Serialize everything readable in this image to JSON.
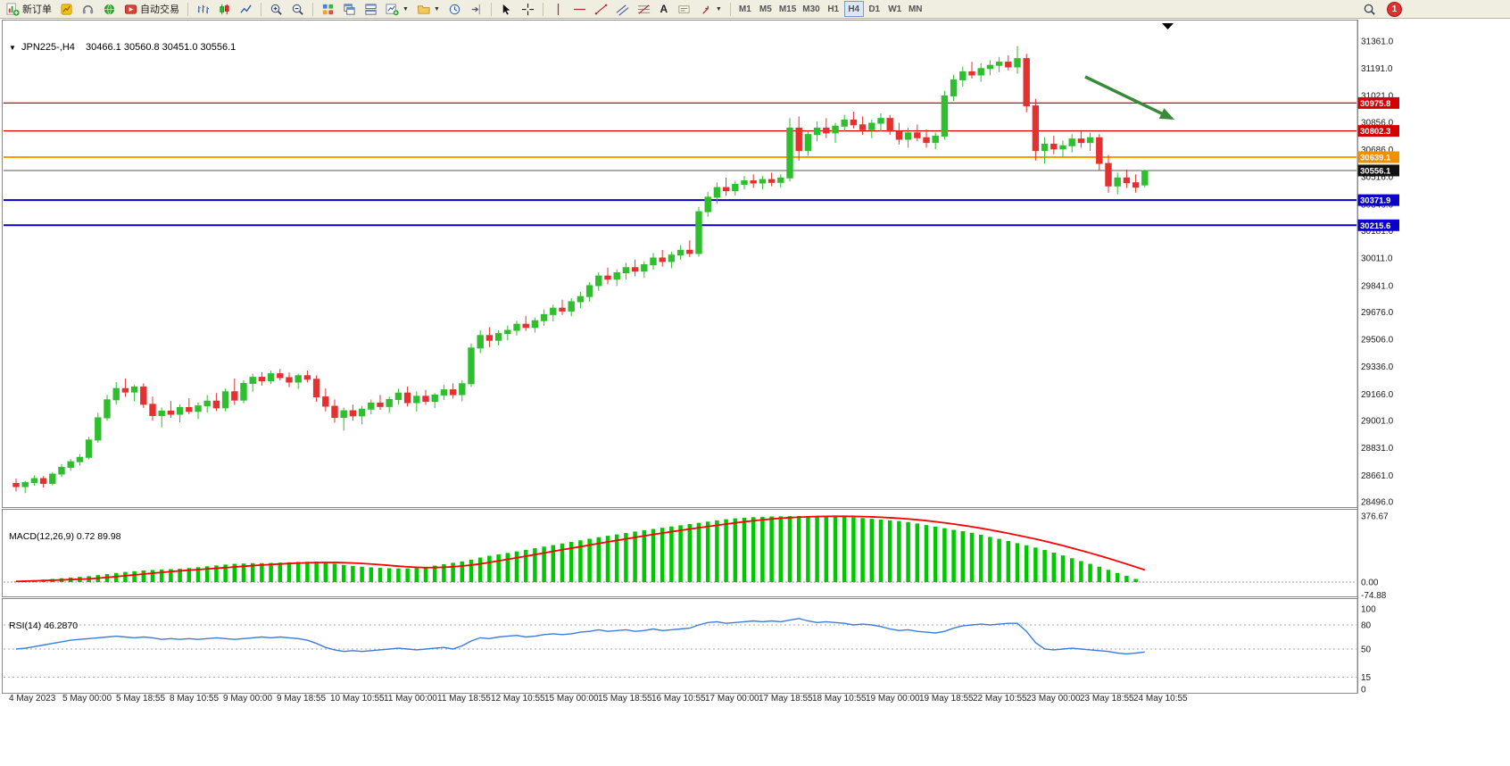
{
  "toolbar": {
    "new_order_label": "新订单",
    "auto_trading_label": "自动交易",
    "text_tool_label": "A",
    "timeframes": [
      "M1",
      "M5",
      "M15",
      "M30",
      "H1",
      "H4",
      "D1",
      "W1",
      "MN"
    ],
    "active_timeframe": "H4",
    "notification_count": "1"
  },
  "titles": {
    "symbol": "JPN225-,H4",
    "ohlc": "30466.1 30560.8 30451.0 30556.1",
    "macd_label": "MACD(12,26,9)",
    "macd_main_value": "0.72",
    "macd_signal_value": "89.98",
    "rsi_label": "RSI(14)",
    "rsi_value": "46.2870"
  },
  "chart_data": {
    "type": "candlestick",
    "symbol": "JPN225-",
    "timeframe": "H4",
    "x_labels": [
      "4 May 2023",
      "5 May 00:00",
      "5 May 18:55",
      "8 May 10:55",
      "9 May 00:00",
      "9 May 18:55",
      "10 May 10:55",
      "11 May 00:00",
      "11 May 18:55",
      "12 May 10:55",
      "15 May 00:00",
      "15 May 18:55",
      "16 May 10:55",
      "17 May 00:00",
      "17 May 18:55",
      "18 May 10:55",
      "19 May 00:00",
      "19 May 18:55",
      "22 May 10:55",
      "23 May 00:00",
      "23 May 18:55",
      "24 May 10:55"
    ],
    "price_panel": {
      "axis_range": [
        28496,
        31361
      ],
      "axis_ticks": [
        "31361.0",
        "31191.0",
        "31021.0",
        "30856.0",
        "30686.0",
        "30516.0",
        "30346.0",
        "30181.0",
        "30011.0",
        "29841.0",
        "29676.0",
        "29506.0",
        "29336.0",
        "29166.0",
        "29001.0",
        "28831.0",
        "28661.0",
        "28496.0"
      ],
      "up_color": "#2ebe2e",
      "down_color": "#e53030",
      "horizontal_lines": [
        {
          "price": 30975.8,
          "label": "30975.8",
          "color": "#e00000",
          "badge_bg": "#d40000",
          "width": 1.2
        },
        {
          "price": 30802.3,
          "label": "30802.3",
          "color": "#e00000",
          "badge_bg": "#d40000",
          "width": 1.2
        },
        {
          "price": 30639.1,
          "label": "30639.1",
          "color": "#ff9d00",
          "badge_bg": "#f09000",
          "width": 2
        },
        {
          "price": 30556.1,
          "label": "30556.1",
          "color": "#555555",
          "badge_bg": "#111111",
          "width": 1
        },
        {
          "price": 30371.9,
          "label": "30371.9",
          "color": "#0a00c8",
          "badge_bg": "#0a00c8",
          "width": 2
        },
        {
          "price": 30215.6,
          "label": "30215.6",
          "color": "#0a00c8",
          "badge_bg": "#0a00c8",
          "width": 2
        }
      ],
      "annotation_arrow": {
        "color": "#3a8a3a",
        "direction": "down-right"
      },
      "candles_ohlc": [
        [
          28610,
          28640,
          28560,
          28590
        ],
        [
          28590,
          28625,
          28550,
          28615
        ],
        [
          28615,
          28660,
          28595,
          28640
        ],
        [
          28640,
          28655,
          28585,
          28610
        ],
        [
          28610,
          28680,
          28598,
          28668
        ],
        [
          28668,
          28730,
          28650,
          28710
        ],
        [
          28710,
          28762,
          28688,
          28745
        ],
        [
          28745,
          28792,
          28720,
          28772
        ],
        [
          28772,
          28900,
          28760,
          28880
        ],
        [
          28880,
          29050,
          28862,
          29018
        ],
        [
          29018,
          29160,
          29000,
          29130
        ],
        [
          29130,
          29240,
          29100,
          29200
        ],
        [
          29200,
          29262,
          29148,
          29178
        ],
        [
          29178,
          29222,
          29120,
          29210
        ],
        [
          29210,
          29232,
          29080,
          29102
        ],
        [
          29102,
          29150,
          29000,
          29032
        ],
        [
          29032,
          29082,
          28958,
          29060
        ],
        [
          29060,
          29122,
          29018,
          29040
        ],
        [
          29040,
          29102,
          28990,
          29082
        ],
        [
          29082,
          29140,
          29040,
          29058
        ],
        [
          29058,
          29112,
          29010,
          29092
        ],
        [
          29092,
          29160,
          29050,
          29122
        ],
        [
          29122,
          29172,
          29060,
          29080
        ],
        [
          29080,
          29200,
          29058,
          29180
        ],
        [
          29180,
          29262,
          29098,
          29128
        ],
        [
          29128,
          29252,
          29108,
          29232
        ],
        [
          29232,
          29292,
          29180,
          29270
        ],
        [
          29270,
          29302,
          29218,
          29248
        ],
        [
          29248,
          29312,
          29228,
          29292
        ],
        [
          29292,
          29322,
          29250,
          29268
        ],
        [
          29268,
          29300,
          29208,
          29240
        ],
        [
          29240,
          29292,
          29198,
          29280
        ],
        [
          29280,
          29312,
          29238,
          29258
        ],
        [
          29258,
          29282,
          29118,
          29148
        ],
        [
          29148,
          29200,
          29058,
          29090
        ],
        [
          29090,
          29132,
          28988,
          29020
        ],
        [
          29020,
          29082,
          28938,
          29062
        ],
        [
          29062,
          29100,
          29000,
          29030
        ],
        [
          29030,
          29092,
          28978,
          29072
        ],
        [
          29072,
          29132,
          29040,
          29110
        ],
        [
          29110,
          29160,
          29068,
          29088
        ],
        [
          29088,
          29150,
          29048,
          29132
        ],
        [
          29132,
          29200,
          29100,
          29172
        ],
        [
          29172,
          29212,
          29088,
          29112
        ],
        [
          29112,
          29182,
          29058,
          29152
        ],
        [
          29152,
          29192,
          29098,
          29120
        ],
        [
          29120,
          29172,
          29078,
          29160
        ],
        [
          29160,
          29222,
          29128,
          29192
        ],
        [
          29192,
          29232,
          29138,
          29162
        ],
        [
          29162,
          29252,
          29120,
          29230
        ],
        [
          29230,
          29480,
          29210,
          29452
        ],
        [
          29452,
          29562,
          29420,
          29530
        ],
        [
          29530,
          29582,
          29458,
          29500
        ],
        [
          29500,
          29562,
          29468,
          29542
        ],
        [
          29542,
          29592,
          29500,
          29562
        ],
        [
          29562,
          29622,
          29530,
          29600
        ],
        [
          29600,
          29652,
          29558,
          29580
        ],
        [
          29580,
          29642,
          29548,
          29622
        ],
        [
          29622,
          29692,
          29590,
          29660
        ],
        [
          29660,
          29722,
          29618,
          29700
        ],
        [
          29700,
          29752,
          29658,
          29682
        ],
        [
          29682,
          29762,
          29650,
          29740
        ],
        [
          29740,
          29802,
          29700,
          29772
        ],
        [
          29772,
          29862,
          29740,
          29840
        ],
        [
          29840,
          29922,
          29808,
          29900
        ],
        [
          29900,
          29952,
          29848,
          29880
        ],
        [
          29880,
          29942,
          29838,
          29920
        ],
        [
          29920,
          29982,
          29878,
          29952
        ],
        [
          29952,
          30002,
          29898,
          29930
        ],
        [
          29930,
          29992,
          29888,
          29970
        ],
        [
          29970,
          30042,
          29938,
          30012
        ],
        [
          30012,
          30062,
          29958,
          29990
        ],
        [
          29990,
          30052,
          29948,
          30030
        ],
        [
          30030,
          30092,
          30000,
          30060
        ],
        [
          30060,
          30122,
          30018,
          30040
        ],
        [
          30040,
          30330,
          30020,
          30300
        ],
        [
          30300,
          30422,
          30268,
          30390
        ],
        [
          30390,
          30482,
          30348,
          30450
        ],
        [
          30450,
          30512,
          30398,
          30430
        ],
        [
          30430,
          30492,
          30400,
          30470
        ],
        [
          30470,
          30522,
          30438,
          30492
        ],
        [
          30492,
          30532,
          30448,
          30478
        ],
        [
          30478,
          30522,
          30438,
          30500
        ],
        [
          30500,
          30542,
          30458,
          30482
        ],
        [
          30482,
          30532,
          30448,
          30510
        ],
        [
          30510,
          30882,
          30488,
          30820
        ],
        [
          30820,
          30892,
          30618,
          30680
        ],
        [
          30680,
          30802,
          30648,
          30780
        ],
        [
          30780,
          30862,
          30738,
          30820
        ],
        [
          30820,
          30882,
          30758,
          30790
        ],
        [
          30790,
          30852,
          30728,
          30832
        ],
        [
          30832,
          30902,
          30798,
          30870
        ],
        [
          30870,
          30922,
          30818,
          30840
        ],
        [
          30840,
          30892,
          30778,
          30810
        ],
        [
          30810,
          30872,
          30758,
          30850
        ],
        [
          30850,
          30912,
          30798,
          30880
        ],
        [
          30880,
          30902,
          30778,
          30800
        ],
        [
          30800,
          30852,
          30718,
          30750
        ],
        [
          30750,
          30822,
          30698,
          30790
        ],
        [
          30790,
          30842,
          30738,
          30760
        ],
        [
          30760,
          30812,
          30698,
          30730
        ],
        [
          30730,
          30792,
          30688,
          30770
        ],
        [
          30770,
          31052,
          30748,
          31020
        ],
        [
          31020,
          31152,
          30988,
          31120
        ],
        [
          31120,
          31202,
          31078,
          31170
        ],
        [
          31170,
          31232,
          31128,
          31150
        ],
        [
          31150,
          31222,
          31108,
          31190
        ],
        [
          31190,
          31242,
          31148,
          31210
        ],
        [
          31210,
          31262,
          31168,
          31230
        ],
        [
          31230,
          31272,
          31178,
          31200
        ],
        [
          31200,
          31330,
          31158,
          31252
        ],
        [
          31252,
          31282,
          30918,
          30958
        ],
        [
          30958,
          31002,
          30618,
          30680
        ],
        [
          30680,
          30762,
          30598,
          30720
        ],
        [
          30720,
          30772,
          30658,
          30690
        ],
        [
          30690,
          30742,
          30638,
          30710
        ],
        [
          30710,
          30782,
          30668,
          30752
        ],
        [
          30752,
          30802,
          30698,
          30730
        ],
        [
          30730,
          30792,
          30678,
          30760
        ],
        [
          30760,
          30782,
          30558,
          30600
        ],
        [
          30600,
          30652,
          30418,
          30460
        ],
        [
          30460,
          30542,
          30408,
          30510
        ],
        [
          30510,
          30562,
          30448,
          30480
        ],
        [
          30480,
          30532,
          30418,
          30452
        ],
        [
          30466.1,
          30560.8,
          30451.0,
          30556.1
        ]
      ]
    },
    "macd_panel": {
      "range": [
        -74.88,
        376.67
      ],
      "axis_labels": [
        "376.67",
        "0.00",
        "-74.88"
      ],
      "histogram_color": "#00c800",
      "signal_color": "#ff0000",
      "histogram": [
        4,
        7,
        10,
        14,
        18,
        22,
        26,
        30,
        34,
        40,
        46,
        52,
        58,
        62,
        66,
        69,
        72,
        74,
        76,
        80,
        85,
        90,
        95,
        100,
        104,
        106,
        108,
        108,
        109,
        111,
        113,
        115,
        116,
        117,
        112,
        105,
        98,
        92,
        88,
        84,
        81,
        79,
        78,
        78,
        80,
        86,
        94,
        102,
        110,
        118,
        128,
        140,
        150,
        158,
        166,
        175,
        184,
        193,
        202,
        211,
        220,
        229,
        238,
        247,
        256,
        264,
        272,
        280,
        288,
        296,
        303,
        310,
        317,
        324,
        331,
        338,
        345,
        352,
        358,
        363,
        367,
        370,
        372,
        374,
        375,
        376,
        376.5,
        376.67,
        376.3,
        375.5,
        374,
        372,
        369,
        365,
        361,
        356,
        352,
        348,
        342,
        334,
        325,
        316,
        307,
        298,
        290,
        281,
        270,
        258,
        246,
        234,
        222,
        210,
        197,
        183,
        168,
        152,
        136,
        120,
        104,
        88,
        70,
        52,
        36,
        18,
        0.72
      ]
    },
    "rsi_panel": {
      "range": [
        0,
        100
      ],
      "levels": [
        80,
        50,
        15
      ],
      "axis_labels": [
        "100",
        "80",
        "50",
        "15",
        "0"
      ],
      "line_color": "#3b7dd8",
      "values": [
        50,
        51,
        53,
        55,
        57,
        59,
        61,
        62,
        63,
        64,
        65,
        66,
        65,
        64,
        65,
        64,
        62,
        63,
        62,
        63,
        62,
        63,
        64,
        63,
        62,
        63,
        64,
        65,
        64,
        65,
        64,
        63,
        61,
        57,
        52,
        49,
        47,
        48,
        47,
        48,
        49,
        50,
        51,
        50,
        49,
        50,
        51,
        52,
        50,
        54,
        60,
        64,
        63,
        65,
        66,
        67,
        65,
        66,
        68,
        69,
        68,
        69,
        71,
        72,
        74,
        72,
        73,
        74,
        72,
        73,
        75,
        73,
        74,
        75,
        76,
        80,
        83,
        84,
        82,
        83,
        84,
        85,
        84,
        85,
        84,
        86,
        88,
        85,
        83,
        84,
        83,
        82,
        80,
        81,
        80,
        78,
        75,
        73,
        74,
        72,
        71,
        70,
        72,
        76,
        79,
        80,
        81,
        80,
        81,
        82,
        82,
        72,
        58,
        50,
        49,
        50,
        51,
        50,
        49,
        48,
        47,
        45,
        44,
        45,
        46.287
      ]
    }
  }
}
